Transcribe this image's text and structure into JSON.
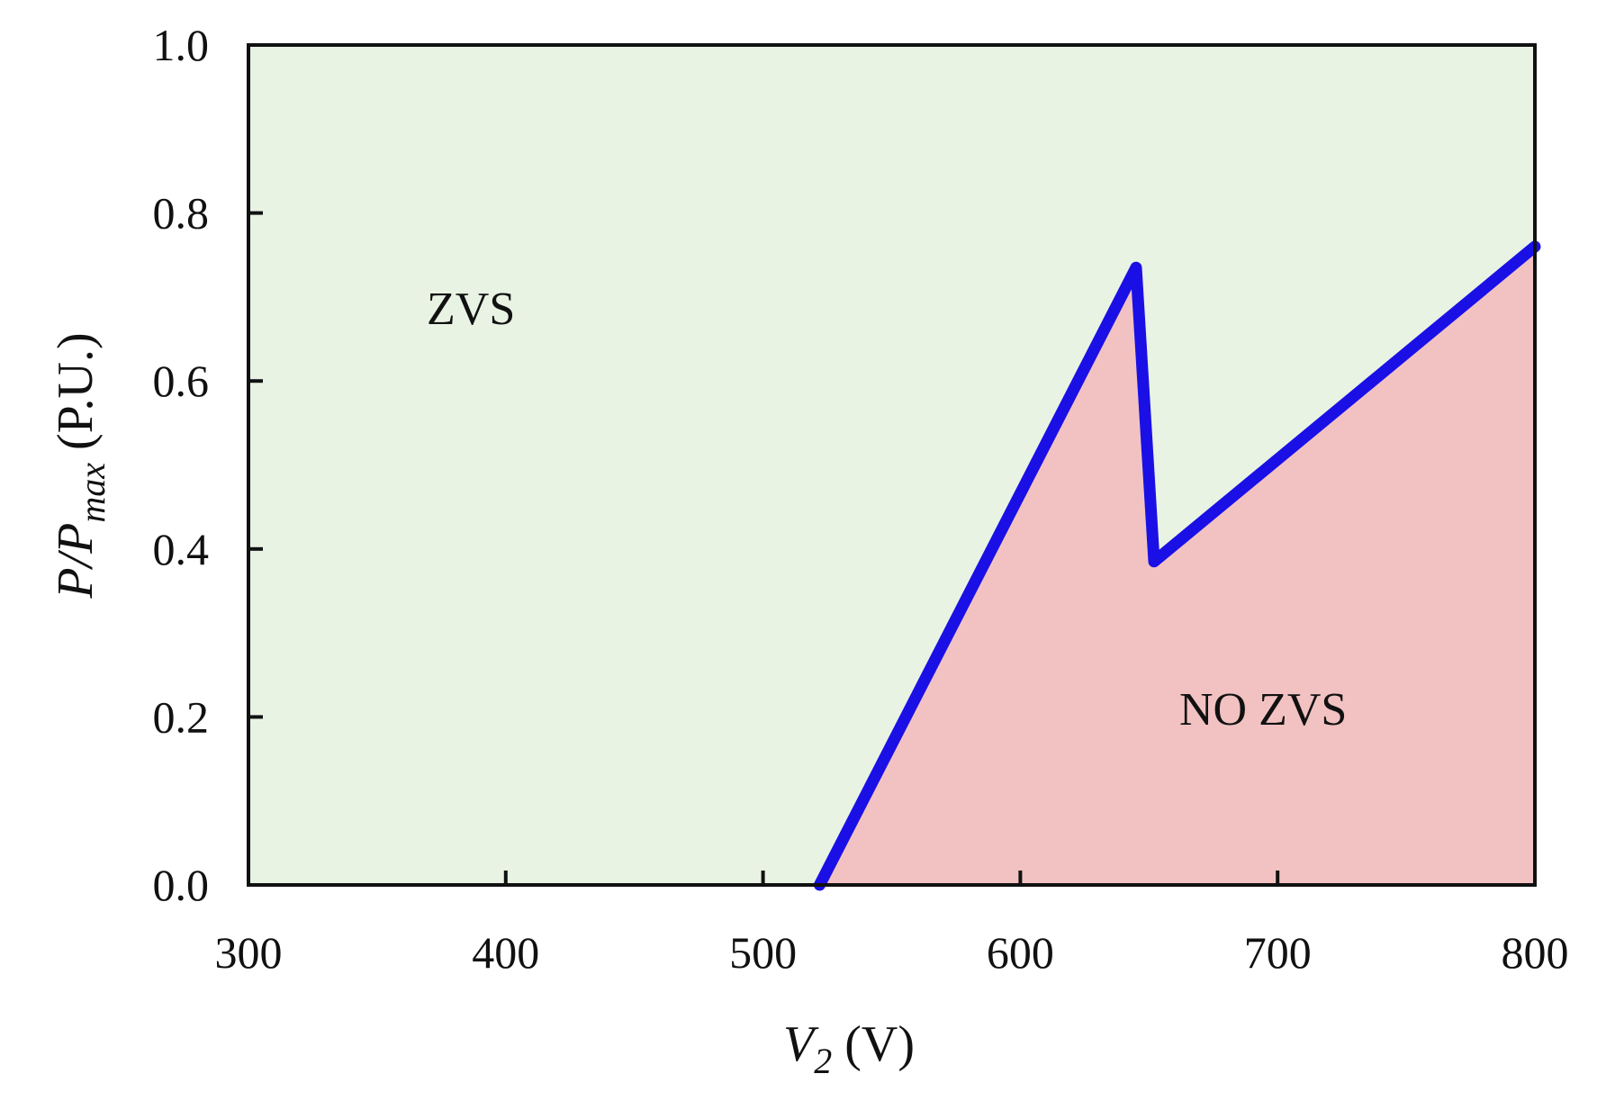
{
  "chart_data": {
    "type": "area",
    "x_axis": {
      "label_var": "V",
      "label_sub": "2",
      "label_unit": " (V)",
      "range": [
        300,
        800
      ],
      "ticks": [
        300,
        400,
        500,
        600,
        700,
        800
      ],
      "tick_labels": [
        "300",
        "400",
        "500",
        "600",
        "700",
        "800"
      ]
    },
    "y_axis": {
      "label_var": "P/P",
      "label_sub": "max",
      "label_unit": " (P.U.)",
      "range": [
        0,
        1
      ],
      "ticks": [
        0,
        0.2,
        0.4,
        0.6,
        0.8,
        1.0
      ],
      "tick_labels": [
        "0.0",
        "0.2",
        "0.4",
        "0.6",
        "0.8",
        "1.0"
      ]
    },
    "boundary": {
      "x": [
        522,
        645,
        652,
        800
      ],
      "y": [
        0,
        0.735,
        0.385,
        0.76
      ]
    },
    "regions": [
      {
        "label": "ZVS",
        "position": "upper-left"
      },
      {
        "label": "NO ZVS",
        "position": "lower-right"
      }
    ],
    "grid": false,
    "colors": {
      "zvs_fill": "#e8f3e3",
      "no_zvs_fill": "#f2c2c2",
      "boundary_line": "#1a10e6",
      "axes": "#111111"
    }
  }
}
